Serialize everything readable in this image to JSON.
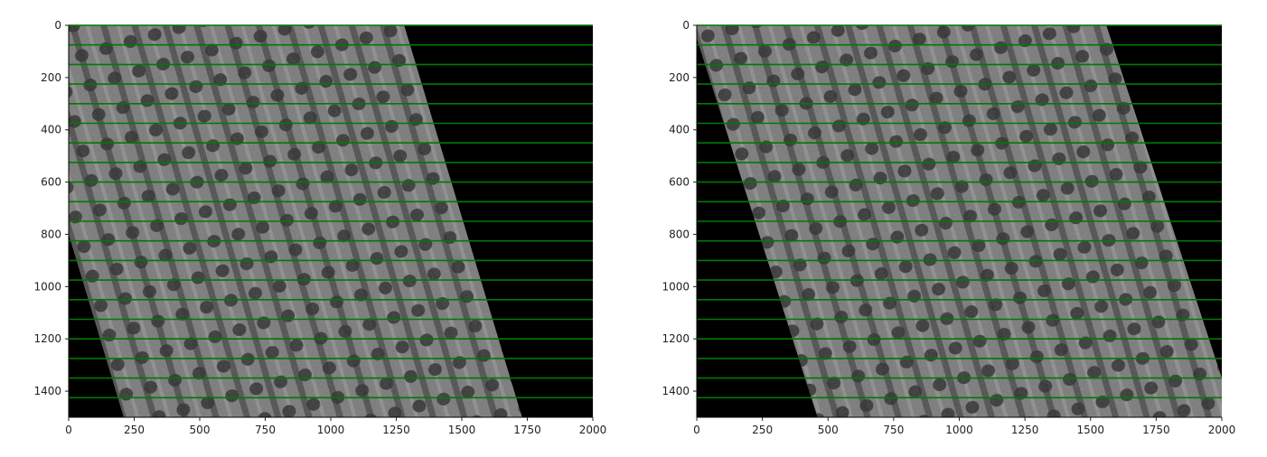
{
  "chart_data": [
    {
      "type": "image-with-lines",
      "panel": "left",
      "title": "",
      "xlabel": "",
      "ylabel": "",
      "xlim": [
        0,
        2000
      ],
      "ylim": [
        1500,
        0
      ],
      "xticks": [
        0,
        250,
        500,
        750,
        1000,
        1250,
        1500,
        1750,
        2000
      ],
      "yticks": [
        0,
        200,
        400,
        600,
        800,
        1000,
        1200,
        1400
      ],
      "image_region": {
        "polygon": [
          [
            0,
            0
          ],
          [
            1280,
            0
          ],
          [
            1730,
            1500
          ],
          [
            210,
            1500
          ],
          [
            0,
            800
          ]
        ],
        "background": "#000000",
        "fill": "grayscale aerial imagery of tree rows"
      },
      "horizontal_lines": {
        "color": "#007a00",
        "y": [
          0,
          75,
          150,
          225,
          300,
          375,
          450,
          525,
          600,
          675,
          750,
          825,
          900,
          975,
          1050,
          1125,
          1200,
          1275,
          1350,
          1425
        ]
      }
    },
    {
      "type": "image-with-lines",
      "panel": "right",
      "title": "",
      "xlabel": "",
      "ylabel": "",
      "xlim": [
        0,
        2000
      ],
      "ylim": [
        1500,
        0
      ],
      "xticks": [
        0,
        250,
        500,
        750,
        1000,
        1250,
        1500,
        1750,
        2000
      ],
      "yticks": [
        0,
        200,
        400,
        600,
        800,
        1000,
        1200,
        1400
      ],
      "image_region": {
        "polygon": [
          [
            0,
            0
          ],
          [
            1560,
            0
          ],
          [
            2000,
            1350
          ],
          [
            2000,
            1500
          ],
          [
            460,
            1500
          ],
          [
            0,
            50
          ]
        ],
        "background": "#000000",
        "fill": "grayscale aerial imagery of tree rows"
      },
      "horizontal_lines": {
        "color": "#007a00",
        "y": [
          0,
          75,
          150,
          225,
          300,
          375,
          450,
          525,
          600,
          675,
          750,
          825,
          900,
          975,
          1050,
          1125,
          1200,
          1275,
          1350,
          1425
        ]
      }
    }
  ],
  "colors": {
    "axes_background": "#000000",
    "imagery_base": "#6e6e6e",
    "line_color": "#007a00",
    "tick_color": "#222222"
  }
}
